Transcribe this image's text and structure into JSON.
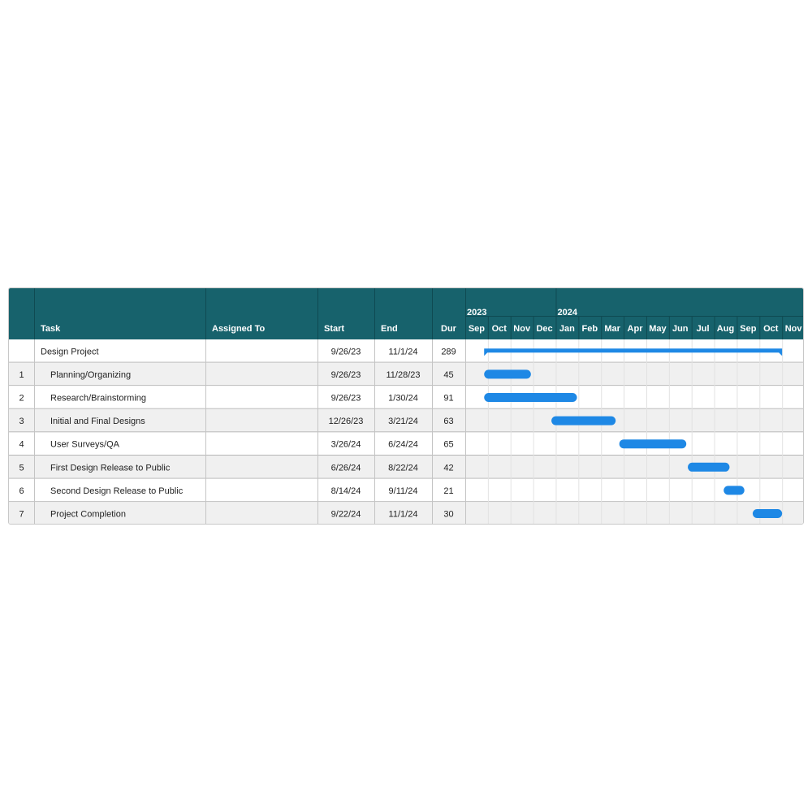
{
  "chart_data": {
    "type": "gantt",
    "columns": {
      "num": "",
      "task": "Task",
      "assigned": "Assigned To",
      "start": "Start",
      "end": "End",
      "dur": "Dur"
    },
    "timeline": {
      "years": [
        {
          "label": "2023",
          "first_month_index": 0
        },
        {
          "label": "2024",
          "first_month_index": 4
        }
      ],
      "months": [
        "Sep",
        "Oct",
        "Nov",
        "Dec",
        "Jan",
        "Feb",
        "Mar",
        "Apr",
        "May",
        "Jun",
        "Jul",
        "Aug",
        "Sep",
        "Oct",
        "Nov"
      ],
      "month_start_dates": [
        "2023-09-01",
        "2023-10-01",
        "2023-11-01",
        "2023-12-01",
        "2024-01-01",
        "2024-02-01",
        "2024-03-01",
        "2024-04-01",
        "2024-05-01",
        "2024-06-01",
        "2024-07-01",
        "2024-08-01",
        "2024-09-01",
        "2024-10-01",
        "2024-11-01",
        "2024-12-01"
      ]
    },
    "summary": {
      "num": "",
      "task": "Design Project",
      "assigned": "",
      "start": "9/26/23",
      "end": "11/1/24",
      "dur": "289",
      "start_date": "2023-09-26",
      "end_date": "2024-11-01"
    },
    "tasks": [
      {
        "num": "1",
        "task": "Planning/Organizing",
        "assigned": "",
        "start": "9/26/23",
        "end": "11/28/23",
        "dur": "45",
        "start_date": "2023-09-26",
        "end_date": "2023-11-28"
      },
      {
        "num": "2",
        "task": "Research/Brainstorming",
        "assigned": "",
        "start": "9/26/23",
        "end": "1/30/24",
        "dur": "91",
        "start_date": "2023-09-26",
        "end_date": "2024-01-30"
      },
      {
        "num": "3",
        "task": "Initial and Final Designs",
        "assigned": "",
        "start": "12/26/23",
        "end": "3/21/24",
        "dur": "63",
        "start_date": "2023-12-26",
        "end_date": "2024-03-21"
      },
      {
        "num": "4",
        "task": "User Surveys/QA",
        "assigned": "",
        "start": "3/26/24",
        "end": "6/24/24",
        "dur": "65",
        "start_date": "2024-03-26",
        "end_date": "2024-06-24"
      },
      {
        "num": "5",
        "task": "First Design Release to Public",
        "assigned": "",
        "start": "6/26/24",
        "end": "8/22/24",
        "dur": "42",
        "start_date": "2024-06-26",
        "end_date": "2024-08-22"
      },
      {
        "num": "6",
        "task": "Second Design Release to Public",
        "assigned": "",
        "start": "8/14/24",
        "end": "9/11/24",
        "dur": "21",
        "start_date": "2024-08-14",
        "end_date": "2024-09-11"
      },
      {
        "num": "7",
        "task": "Project Completion",
        "assigned": "",
        "start": "9/22/24",
        "end": "11/1/24",
        "dur": "30",
        "start_date": "2024-09-22",
        "end_date": "2024-11-01"
      }
    ],
    "colors": {
      "header": "#17626c",
      "header_text": "#ffffff",
      "bar": "#1e88e5",
      "row_alt": "#f0f0f0",
      "grid": "#e2e2e2",
      "border": "#b5b5b5"
    }
  }
}
